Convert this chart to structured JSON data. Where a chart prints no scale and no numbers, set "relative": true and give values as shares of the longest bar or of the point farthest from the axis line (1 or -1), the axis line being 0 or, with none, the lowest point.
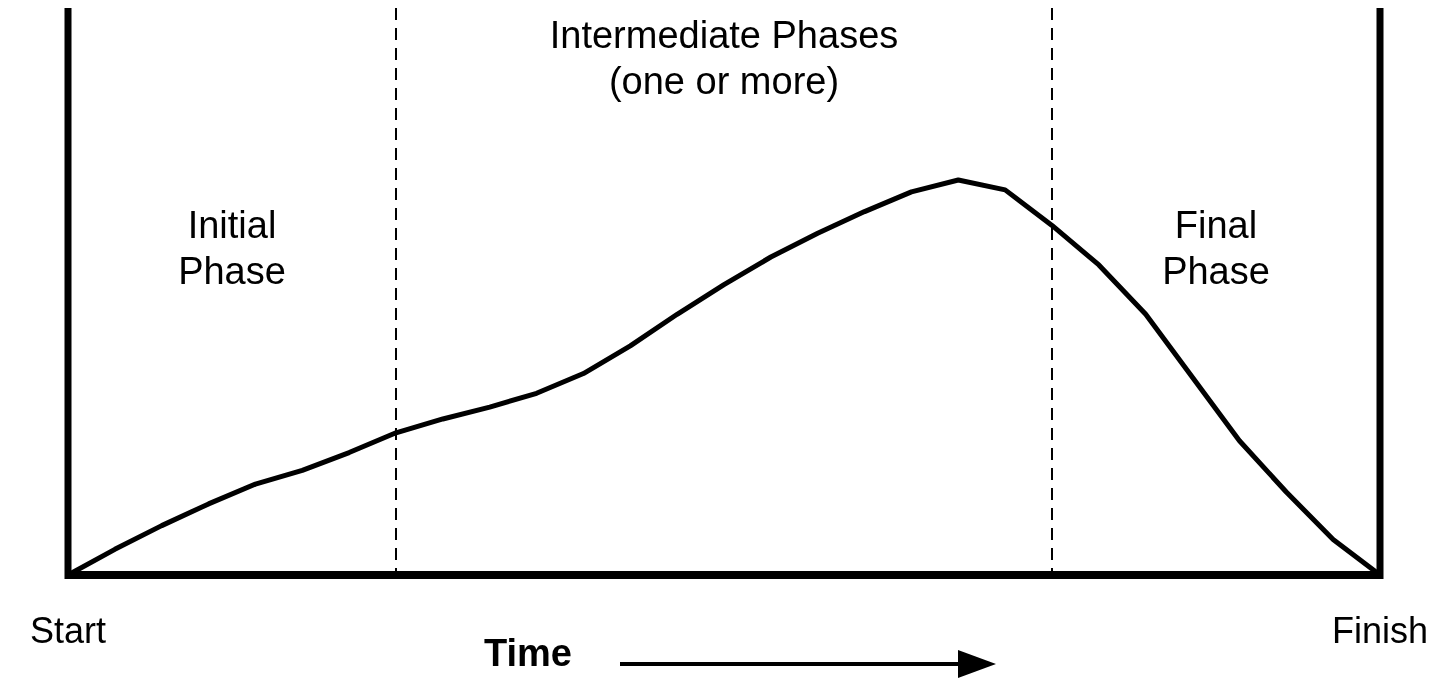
{
  "chart_data": {
    "type": "line",
    "relative": true,
    "xlabel": "Time",
    "categories": [
      "Start",
      null,
      null,
      null,
      null,
      null,
      null,
      null,
      null,
      null,
      null,
      null,
      null,
      null,
      null,
      null,
      null,
      null,
      null,
      null,
      null,
      null,
      null,
      null,
      null,
      null,
      null,
      null,
      "Finish"
    ],
    "series": [
      {
        "color": "#000000",
        "values": [
          0,
          0.065,
          0.125,
          0.18,
          0.23,
          0.265,
          0.31,
          0.36,
          0.395,
          0.425,
          0.46,
          0.51,
          0.58,
          0.66,
          0.735,
          0.805,
          0.865,
          0.92,
          0.97,
          1,
          0.975,
          0.885,
          0.785,
          0.66,
          0.5,
          0.34,
          0.21,
          0.09,
          0
        ]
      }
    ],
    "annotations": [
      "Initial\nPhase",
      "Intermediate Phases\n(one or more)",
      "Final\nPhase"
    ],
    "grid": "x",
    "marker": "none",
    "line_style": "solid"
  }
}
